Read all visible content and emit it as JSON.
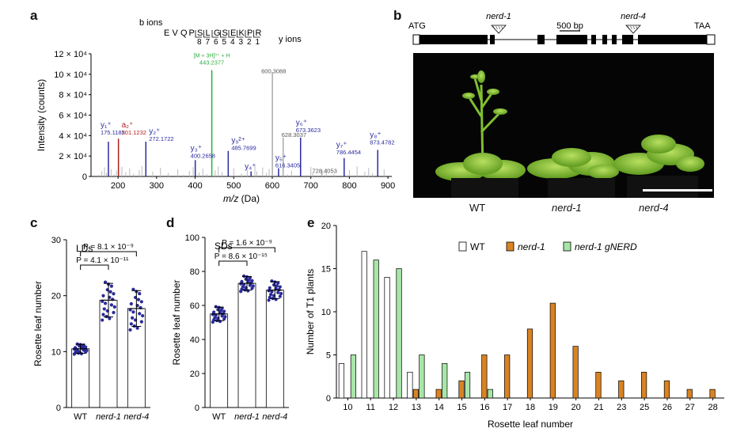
{
  "panels": {
    "a": "a",
    "b": "b",
    "c": "c",
    "d": "d",
    "e": "e"
  },
  "panel_a": {
    "b_ions_label": "b ions",
    "y_ions_label": "y ions",
    "sequence": [
      "E",
      "V",
      "Q",
      "P",
      "S",
      "L",
      "G",
      "S",
      "E",
      "K",
      "P",
      "R"
    ],
    "y_numbers": [
      "8",
      "7",
      "6",
      "5",
      "4",
      "3",
      "2",
      "1"
    ],
    "ylabel": "Intensity (counts)",
    "xlabel_italic": "m/z",
    "xlabel_rest": " (Da)",
    "yticks": [
      "0",
      "2 × 10⁴",
      "4 × 10⁴",
      "6 × 10⁴",
      "8 × 10⁴",
      "10 × 10⁴",
      "12 × 10⁴"
    ],
    "xticks": [
      "200",
      "300",
      "400",
      "500",
      "600",
      "700",
      "800",
      "900"
    ],
    "precursor_label": "[M + 3H]³⁺ + H",
    "precursor_value": "443.2377",
    "peak_labels": [
      {
        "ion": "y₁⁺",
        "mz": "175.1185",
        "color": "#2a2aa0"
      },
      {
        "ion": "a₂⁺",
        "mz": "201.1232",
        "color": "#b02020"
      },
      {
        "ion": "y₂⁺",
        "mz": "272.1722",
        "color": "#2a2aa0"
      },
      {
        "ion": "y₃⁺",
        "mz": "400.2658",
        "color": "#2a2aa0"
      },
      {
        "ion": "y₉²⁺",
        "mz": "485.7699",
        "color": "#2a2aa0"
      },
      {
        "ion": "y₄⁺",
        "mz": "",
        "color": "#2a2aa0"
      },
      {
        "ion": "y₅⁺",
        "mz": "616.3405",
        "color": "#2a2aa0"
      },
      {
        "ion": "y₆⁺",
        "mz": "673.3623",
        "color": "#2a2aa0"
      },
      {
        "ion": "y₇⁺",
        "mz": "786.4454",
        "color": "#2a2aa0"
      },
      {
        "ion": "y₈⁺",
        "mz": "873.4782",
        "color": "#2a2aa0"
      },
      {
        "ion": "",
        "mz": "600.3088",
        "color": "#555555"
      },
      {
        "ion": "",
        "mz": "628.3037",
        "color": "#555555"
      },
      {
        "ion": "",
        "mz": "728.4053",
        "color": "#555555"
      }
    ]
  },
  "panel_b": {
    "atg": "ATG",
    "taa": "TAA",
    "nerd1": "nerd-1",
    "nerd4": "nerd-4",
    "scale": "500 bp",
    "captions": [
      "WT",
      "nerd-1",
      "nerd-4"
    ]
  },
  "panel_c": {
    "condition": "LDs",
    "ylabel": "Rosette leaf number",
    "yticks": [
      "0",
      "10",
      "20",
      "30"
    ],
    "categories": [
      "WT",
      "nerd-1",
      "nerd-4"
    ],
    "p1": "P = 8.1 × 10⁻⁹",
    "p2": "P = 4.1 × 10⁻¹¹"
  },
  "panel_d": {
    "condition": "SDs",
    "ylabel": "Rosette leaf number",
    "yticks": [
      "0",
      "20",
      "40",
      "60",
      "80",
      "100"
    ],
    "categories": [
      "WT",
      "nerd-1",
      "nerd-4"
    ],
    "p1": "P = 1.6 × 10⁻⁹",
    "p2": "P = 8.6 × 10⁻¹⁵"
  },
  "panel_e": {
    "ylabel": "Number of T1 plants",
    "xlabel": "Rosette leaf number",
    "legend": [
      "WT",
      "nerd-1",
      "nerd-1 gNERD"
    ],
    "yticks": [
      "0",
      "5",
      "10",
      "15",
      "20"
    ]
  },
  "colors": {
    "blue_series": "#2a2a9a",
    "red_series": "#b02020",
    "green_peak": "#2fae3f",
    "orange_bar": "#d98324",
    "green_bar": "#a8e6a8"
  },
  "chart_data": [
    {
      "type": "bar",
      "panel": "a",
      "title": "",
      "xlabel": "m/z (Da)",
      "ylabel": "Intensity (counts)",
      "xlim": [
        130,
        910
      ],
      "ylim": [
        0,
        120000
      ],
      "x": [
        175.1,
        201.1,
        272.2,
        400.3,
        443.2,
        485.8,
        545,
        600.3,
        616.3,
        628.3,
        673.4,
        728.4,
        786.4,
        873.5
      ],
      "values": [
        34000,
        37000,
        34000,
        16000,
        104000,
        25000,
        5000,
        102000,
        8000,
        38000,
        38000,
        6000,
        18000,
        26000
      ]
    },
    {
      "type": "bar",
      "panel": "c",
      "title": "LDs",
      "xlabel": "",
      "ylabel": "Rosette leaf number",
      "categories": [
        "WT",
        "nerd-1",
        "nerd-4"
      ],
      "values": [
        10.5,
        19.2,
        17.7
      ],
      "errors": [
        0.8,
        3.0,
        3.2
      ],
      "ylim": [
        0,
        30
      ]
    },
    {
      "type": "bar",
      "panel": "d",
      "title": "SDs",
      "xlabel": "",
      "ylabel": "Rosette leaf number",
      "categories": [
        "WT",
        "nerd-1",
        "nerd-4"
      ],
      "values": [
        55,
        73,
        69
      ],
      "errors": [
        4,
        4,
        5
      ],
      "ylim": [
        0,
        100
      ]
    },
    {
      "type": "bar",
      "panel": "e",
      "title": "",
      "xlabel": "Rosette leaf number",
      "ylabel": "Number of T1 plants",
      "categories": [
        "10",
        "11",
        "12",
        "13",
        "14",
        "15",
        "16",
        "17",
        "18",
        "19",
        "20",
        "21",
        "23",
        "25",
        "26",
        "27",
        "28"
      ],
      "series": [
        {
          "name": "WT",
          "values": [
            4,
            17,
            14,
            3,
            0,
            0,
            0,
            0,
            0,
            0,
            0,
            0,
            0,
            0,
            0,
            0,
            0
          ]
        },
        {
          "name": "nerd-1",
          "values": [
            0,
            0,
            0,
            1,
            1,
            2,
            5,
            5,
            8,
            11,
            6,
            3,
            2,
            3,
            2,
            1,
            1
          ]
        },
        {
          "name": "nerd-1 gNERD",
          "values": [
            5,
            16,
            15,
            5,
            4,
            3,
            1,
            0,
            0,
            0,
            0,
            0,
            0,
            0,
            0,
            0,
            0
          ]
        }
      ],
      "ylim": [
        0,
        20
      ],
      "legend_position": "top-right"
    }
  ]
}
